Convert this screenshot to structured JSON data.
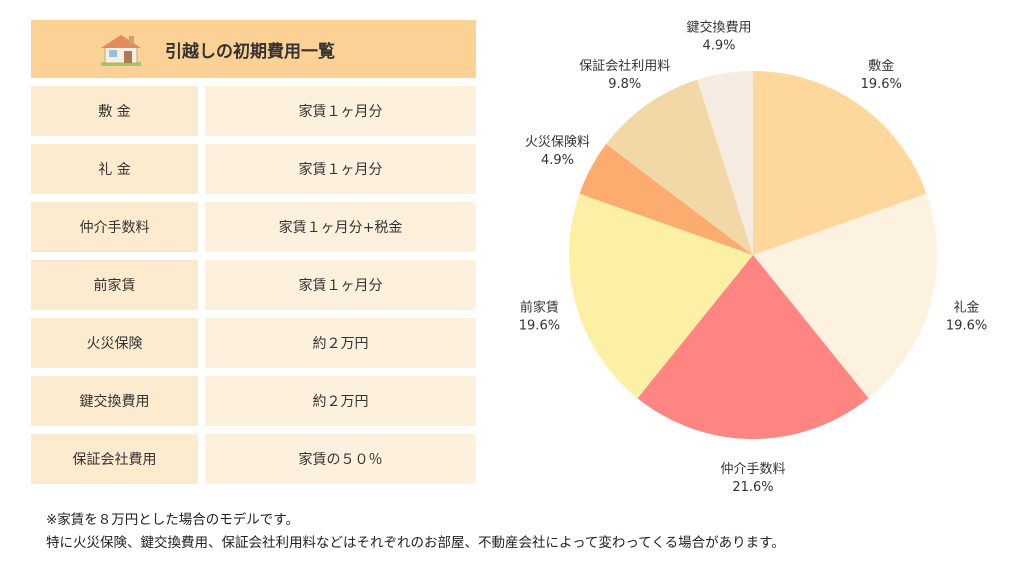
{
  "table": {
    "title": "引越しの初期費用一覧",
    "rows": [
      {
        "label": "敷 金",
        "value": "家賃１ヶ月分"
      },
      {
        "label": "礼 金",
        "value": "家賃１ヶ月分"
      },
      {
        "label": "仲介手数料",
        "value": "家賃１ヶ月分+税金"
      },
      {
        "label": "前家賃",
        "value": "家賃１ヶ月分"
      },
      {
        "label": "火災保険",
        "value": "約２万円"
      },
      {
        "label": "鍵交換費用",
        "value": "約２万円"
      },
      {
        "label": "保証会社費用",
        "value": "家賃の５０％"
      }
    ]
  },
  "notes": [
    "※家賃を８万円とした場合のモデルです。",
    "特に火災保険、鍵交換費用、保証会社利用料などはそれぞれのお部屋、不動産会社によって変わってくる場合があります。"
  ],
  "colors": {
    "header_bg": "#fcd196",
    "label_bg": "#fdebcf",
    "value_bg": "#fdf0dc"
  },
  "chart_data": {
    "type": "pie",
    "title": "",
    "start_angle_deg": 90,
    "direction": "clockwise",
    "slices": [
      {
        "label": "敷金",
        "value_text": "19.6%",
        "value": 19.6,
        "color": "#fdd79c"
      },
      {
        "label": "礼金",
        "value_text": "19.6%",
        "value": 19.6,
        "color": "#fdf1df"
      },
      {
        "label": "仲介手数料",
        "value_text": "21.6%",
        "value": 21.6,
        "color": "#fe8582"
      },
      {
        "label": "前家賃",
        "value_text": "19.6%",
        "value": 19.6,
        "color": "#fcf0a4"
      },
      {
        "label": "火災保険料",
        "value_text": "4.9%",
        "value": 4.9,
        "color": "#fcac6e"
      },
      {
        "label": "保証会社利用料",
        "value_text": "9.8%",
        "value": 9.8,
        "color": "#f2d8a6"
      },
      {
        "label": "鍵交換費用",
        "value_text": "4.9%",
        "value": 4.9,
        "color": "#f5ebe0"
      }
    ]
  }
}
